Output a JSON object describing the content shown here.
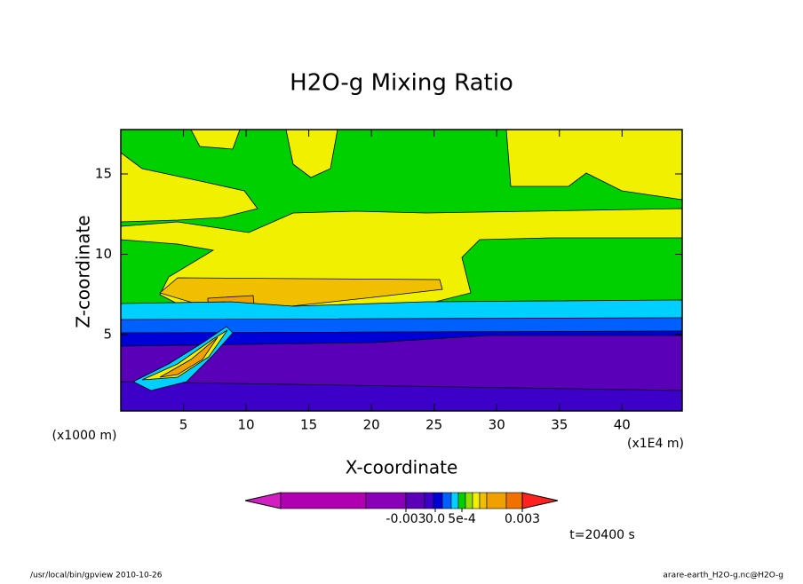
{
  "chart_data": {
    "type": "contour",
    "title": "H2O-g Mixing Ratio",
    "x_label": "X-coordinate",
    "y_label": "Z-coordinate",
    "x_unit": "(x1E4 m)",
    "y_unit": "(x1000 m)",
    "xlim": [
      0,
      44.8
    ],
    "ylim": [
      0.25,
      17.76
    ],
    "xticks": [
      5,
      10,
      15,
      20,
      25,
      30,
      35,
      40
    ],
    "yticks": [
      5,
      10,
      15
    ],
    "colorbar_colors": [
      "#d21fc4",
      "#b000b0",
      "#8a00b8",
      "#5a00b8",
      "#3c00c8",
      "#0000d8",
      "#0060ff",
      "#00d0ff",
      "#00d000",
      "#90e000",
      "#f0f000",
      "#f0c000",
      "#f0a000",
      "#f07000",
      "#ff2020"
    ],
    "colorbar_ticks": [
      -0.003,
      {
        "value": 0.0,
        "label": "0.0"
      },
      {
        "value": 0.0005,
        "label": "5e-4"
      },
      0.003
    ],
    "time_label": "t=20400 s",
    "footer_left": "/usr/local/bin/gpview  2010-10-26",
    "footer_right": "arare-earth_H2O-g.nc@H2O-g"
  }
}
